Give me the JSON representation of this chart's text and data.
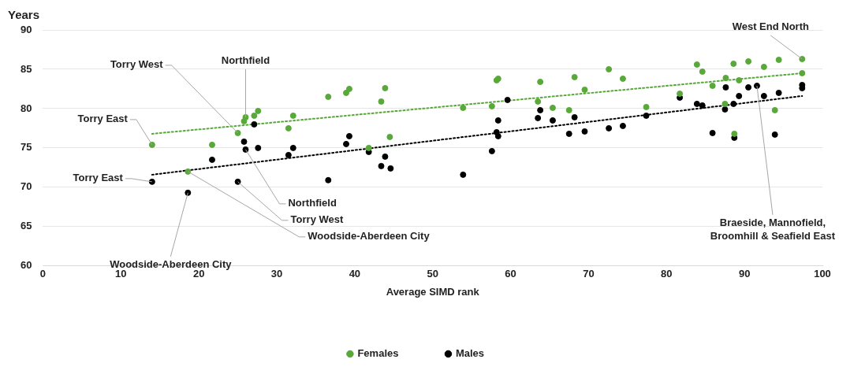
{
  "chart_data": {
    "type": "scatter",
    "xlabel": "Average SIMD rank",
    "ylabel": "Years",
    "xlim": [
      0,
      100
    ],
    "xticks": [
      0,
      10,
      20,
      30,
      40,
      50,
      60,
      70,
      80,
      90,
      100
    ],
    "ylim": [
      60,
      90
    ],
    "yticks": [
      60,
      65,
      70,
      75,
      80,
      85,
      90
    ],
    "grid": "y",
    "legend": "bottom",
    "marker": "circle",
    "series": [
      {
        "name": "Females",
        "color": "#59a83a",
        "x": [
          14.0,
          18.6,
          21.7,
          25.0,
          25.8,
          26.0,
          27.1,
          27.6,
          31.5,
          32.1,
          36.6,
          38.9,
          39.3,
          41.8,
          43.4,
          43.9,
          44.5,
          53.9,
          57.6,
          58.2,
          58.4,
          63.5,
          63.8,
          65.4,
          67.5,
          68.2,
          69.5,
          72.6,
          74.4,
          77.4,
          81.7,
          83.9,
          84.6,
          85.9,
          87.5,
          87.6,
          88.6,
          88.7,
          89.3,
          90.5,
          92.5,
          93.9,
          94.4,
          97.4,
          97.4
        ],
        "values": [
          75.4,
          72.0,
          75.4,
          76.9,
          78.4,
          78.9,
          79.1,
          79.7,
          77.5,
          79.1,
          81.5,
          82.0,
          82.5,
          75.0,
          80.9,
          82.6,
          76.4,
          80.1,
          80.3,
          83.6,
          83.8,
          80.9,
          83.4,
          80.1,
          79.8,
          84.0,
          82.4,
          85.0,
          83.8,
          80.2,
          81.9,
          85.6,
          84.7,
          82.9,
          80.6,
          83.9,
          85.7,
          76.8,
          83.6,
          86.0,
          85.3,
          79.8,
          86.2,
          86.3,
          84.5
        ]
      },
      {
        "name": "Males",
        "color": "#000000",
        "x": [
          14.0,
          18.6,
          21.7,
          25.0,
          25.8,
          26.0,
          27.1,
          27.6,
          31.5,
          32.1,
          36.6,
          38.9,
          39.3,
          41.8,
          43.4,
          43.9,
          44.6,
          53.9,
          57.6,
          58.2,
          58.4,
          58.4,
          59.6,
          63.5,
          63.8,
          65.4,
          67.5,
          68.2,
          69.5,
          72.6,
          74.4,
          77.4,
          81.7,
          83.9,
          84.6,
          85.9,
          87.5,
          87.6,
          88.6,
          88.7,
          89.3,
          90.5,
          91.6,
          92.5,
          93.9,
          94.4,
          97.4,
          97.4
        ],
        "values": [
          70.7,
          69.3,
          73.5,
          70.7,
          75.8,
          74.8,
          78.0,
          75.0,
          74.1,
          75.0,
          70.9,
          75.5,
          76.5,
          74.5,
          72.7,
          73.9,
          72.4,
          71.6,
          74.6,
          77.0,
          76.5,
          78.5,
          81.1,
          78.8,
          79.8,
          78.5,
          76.8,
          78.9,
          77.1,
          77.5,
          77.8,
          79.1,
          81.4,
          80.6,
          80.4,
          76.9,
          79.9,
          82.7,
          80.6,
          76.3,
          81.6,
          82.7,
          82.9,
          81.6,
          76.7,
          82.0,
          83.0,
          82.6
        ]
      },
      {
        "type": "line",
        "color": "#59a83a",
        "line_style": "dotted",
        "marker": "none",
        "x": [
          14.0,
          97.4
        ],
        "values": [
          76.8,
          84.5
        ]
      },
      {
        "type": "line",
        "color": "#000000",
        "line_style": "dotted",
        "marker": "none",
        "x": [
          14.0,
          97.4
        ],
        "values": [
          71.6,
          81.6
        ]
      }
    ],
    "annotations": [
      {
        "text": "Torry West",
        "x": 25.0,
        "y": 76.9
      },
      {
        "text": "Northfield",
        "x": 26.0,
        "y": 78.9
      },
      {
        "text": "Torry East",
        "x": 14.0,
        "y": 75.4
      },
      {
        "text": "Torry East",
        "x": 14.0,
        "y": 70.7
      },
      {
        "text": "Woodside-Aberdeen City",
        "x": 18.6,
        "y": 69.3
      },
      {
        "text": "Northfield",
        "x": 26.0,
        "y": 74.8
      },
      {
        "text": "Torry West",
        "x": 25.0,
        "y": 70.7
      },
      {
        "text": "Woodside-Aberdeen City",
        "x": 18.6,
        "y": 72.0
      },
      {
        "text": "West End North",
        "x": 97.4,
        "y": 86.3
      },
      {
        "text": "Braeside, Mannofield, Broomhill & Seafield East",
        "x": 91.6,
        "y": 82.9
      }
    ]
  }
}
